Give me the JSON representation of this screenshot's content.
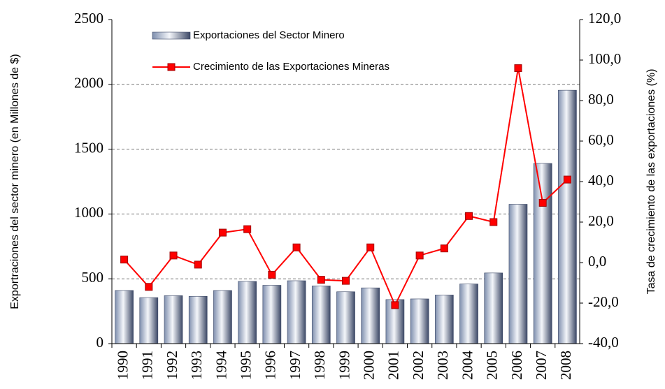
{
  "chart_data": {
    "type": "bar-line",
    "y_label": "Exportraciones del sector minero (en Millones de $)",
    "y2_label": "Tasa de crecimiento de las exportaciones  (%)",
    "categories": [
      "1990",
      "1991",
      "1992",
      "1993",
      "1994",
      "1995",
      "1996",
      "1997",
      "1998",
      "1999",
      "2000",
      "2001",
      "2002",
      "2003",
      "2004",
      "2005",
      "2006",
      "2007",
      "2008"
    ],
    "series": [
      {
        "name": "Exportaciones del Sector Minero",
        "type": "bar",
        "color": "#7f8fae",
        "values": [
          410,
          355,
          370,
          365,
          410,
          480,
          450,
          485,
          445,
          400,
          430,
          340,
          345,
          375,
          460,
          545,
          1075,
          1390,
          1955
        ]
      },
      {
        "name": "Crecimiento de las Exportaciones Mineras",
        "type": "line",
        "axis": "y2",
        "color": "#ff0000",
        "values": [
          1.5,
          -12,
          3.5,
          -1,
          14.8,
          16.5,
          -6,
          7.5,
          -8.5,
          -9,
          7.5,
          -21,
          3.5,
          7,
          23,
          20,
          96,
          29.5,
          41
        ]
      }
    ],
    "ylim": [
      0,
      2500
    ],
    "yticks": [
      0,
      500,
      1000,
      1500,
      2000,
      2500
    ],
    "y2lim": [
      -40,
      120
    ],
    "y2ticks": [
      {
        "value": -40,
        "label": "-40,0"
      },
      {
        "value": -20,
        "label": "-20,0"
      },
      {
        "value": 0,
        "label": "0,0"
      },
      {
        "value": 20,
        "label": "20,0"
      },
      {
        "value": 40,
        "label": "40,0"
      },
      {
        "value": 60,
        "label": "60,0"
      },
      {
        "value": 80,
        "label": "80,0"
      },
      {
        "value": 100,
        "label": "100,0"
      },
      {
        "value": 120,
        "label": "120,0"
      }
    ],
    "grid": true
  }
}
